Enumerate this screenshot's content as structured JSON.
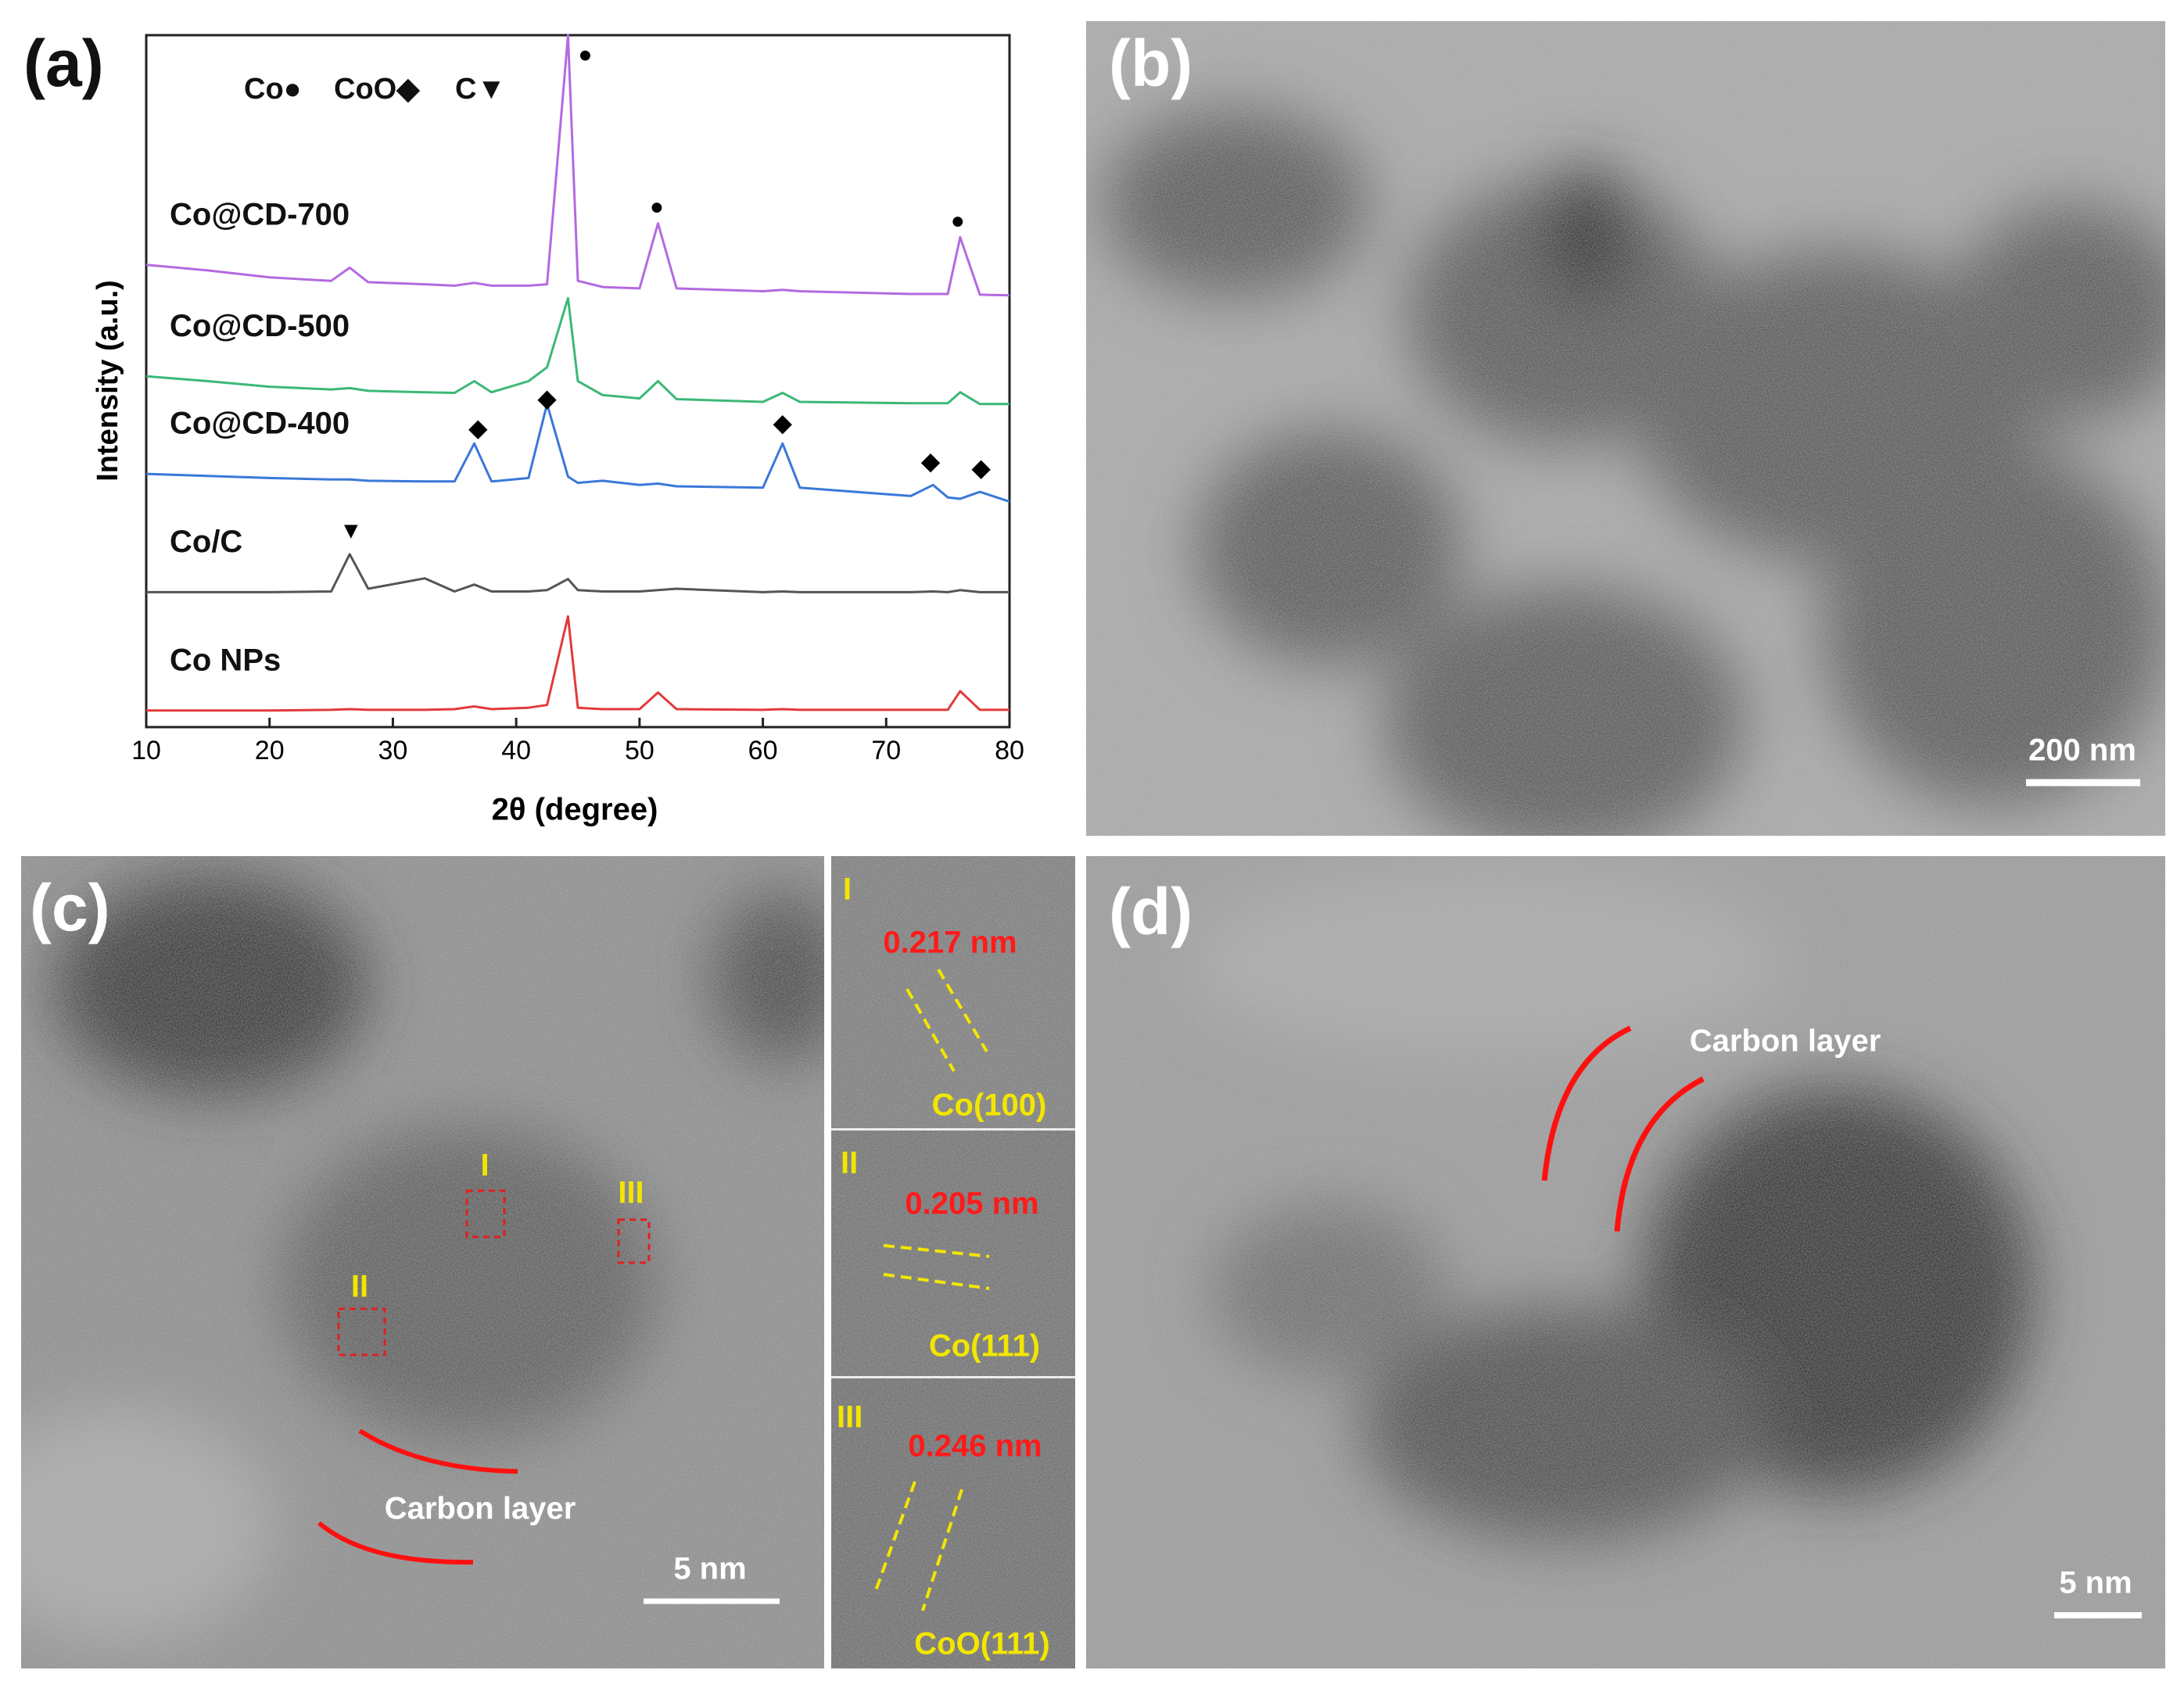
{
  "chart_data": {
    "type": "line",
    "panel_label": "(a)",
    "xlabel": "2θ (degree)",
    "ylabel": "Intensity (a.u.)",
    "phase_legend": [
      "Co●",
      "CoO◆",
      "C▼"
    ],
    "x": [
      10,
      15,
      20,
      25,
      26.5,
      28,
      32.6,
      35,
      36.6,
      38,
      41,
      42.5,
      44.2,
      45,
      47,
      50,
      51.5,
      53,
      60,
      61.6,
      63,
      72,
      73.8,
      75,
      76,
      77.6,
      80
    ],
    "series": [
      {
        "name": "Co@CD-700",
        "color": "#b36ae0",
        "values": [
          66.8,
          66,
          65,
          64.5,
          66.4,
          64.3,
          64,
          63.8,
          64.2,
          63.8,
          63.8,
          64,
          100,
          64.5,
          63.6,
          63.4,
          72.8,
          63.4,
          63,
          63.2,
          63,
          62.6,
          62.6,
          62.6,
          70.8,
          62.5,
          62.4
        ]
      },
      {
        "name": "Co@CD-500",
        "color": "#3cb878",
        "values": [
          50.7,
          50,
          49.2,
          48.8,
          49,
          48.6,
          48.4,
          48.3,
          50,
          48.4,
          50,
          52,
          62,
          50,
          48,
          47.5,
          50,
          47.4,
          47,
          48.3,
          47,
          46.8,
          46.8,
          46.8,
          48.4,
          46.7,
          46.7
        ]
      },
      {
        "name": "Co@CD-400",
        "color": "#3a78d8",
        "values": [
          36.6,
          36.3,
          36,
          35.8,
          35.8,
          35.6,
          35.5,
          35.5,
          41,
          35.5,
          36,
          46.7,
          36.2,
          35.3,
          35.6,
          35,
          35.2,
          34.8,
          34.6,
          41,
          34.6,
          33.4,
          35,
          33.2,
          33,
          34,
          32.6
        ]
      },
      {
        "name": "Co/C",
        "color": "#555555",
        "values": [
          19.5,
          19.5,
          19.5,
          19.6,
          25,
          20,
          21.5,
          19.6,
          20.6,
          19.6,
          19.6,
          19.8,
          21.4,
          19.8,
          19.6,
          19.6,
          19.8,
          20,
          19.5,
          19.6,
          19.5,
          19.5,
          19.6,
          19.5,
          19.8,
          19.5,
          19.5
        ]
      },
      {
        "name": "Co NPs",
        "color": "#e23a3a",
        "values": [
          2.4,
          2.4,
          2.4,
          2.5,
          2.6,
          2.5,
          2.5,
          2.6,
          3,
          2.6,
          2.8,
          3.2,
          16,
          2.8,
          2.6,
          2.6,
          5,
          2.6,
          2.5,
          2.6,
          2.5,
          2.5,
          2.5,
          2.5,
          5.2,
          2.5,
          2.5
        ]
      }
    ],
    "peak_markers": [
      {
        "symbol": "●",
        "x": 45.6,
        "y": 97
      },
      {
        "symbol": "●",
        "x": 51.4,
        "y": 75
      },
      {
        "symbol": "●",
        "x": 75.8,
        "y": 73
      },
      {
        "symbol": "◆",
        "x": 36.9,
        "y": 43
      },
      {
        "symbol": "◆",
        "x": 42.5,
        "y": 47.3
      },
      {
        "symbol": "◆",
        "x": 61.6,
        "y": 43.7
      },
      {
        "symbol": "◆",
        "x": 73.6,
        "y": 38.2
      },
      {
        "symbol": "◆",
        "x": 77.7,
        "y": 37.2
      },
      {
        "symbol": "▼",
        "x": 26.6,
        "y": 28.2
      }
    ],
    "xlim": [
      10,
      80
    ],
    "xticks": [
      10,
      20,
      30,
      40,
      50,
      60,
      70,
      80
    ],
    "ylim": [
      0,
      100
    ]
  },
  "panels": {
    "b": {
      "label": "(b)",
      "scale_bar": "200 nm"
    },
    "c": {
      "label": "(c)",
      "regions": [
        "I",
        "II",
        "III"
      ],
      "annotation": "Carbon layer",
      "scale_bar": "5 nm",
      "insets": [
        {
          "label": "I",
          "spacing": "0.217 nm",
          "plane": "Co(100)"
        },
        {
          "label": "II",
          "spacing": "0.205 nm",
          "plane": "Co(111)"
        },
        {
          "label": "III",
          "spacing": "0.246 nm",
          "plane": "CoO(111)"
        }
      ]
    },
    "d": {
      "label": "(d)",
      "annotation": "Carbon layer",
      "scale_bar": "5 nm"
    }
  }
}
